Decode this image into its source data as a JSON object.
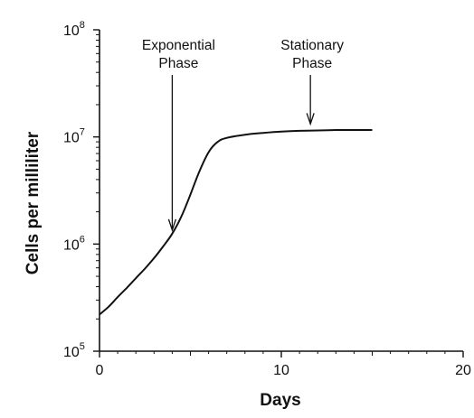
{
  "chart_data": {
    "type": "line",
    "title": "",
    "xlabel": "Days",
    "ylabel": "Cells per milliliter",
    "xlim": [
      0,
      20
    ],
    "ylim": [
      100000,
      100000000
    ],
    "yscale": "log",
    "grid": false,
    "legend": "none",
    "x_ticks": [
      {
        "value": 0,
        "label": "0"
      },
      {
        "value": 10,
        "label": "10"
      },
      {
        "value": 20,
        "label": "20"
      }
    ],
    "y_ticks": [
      {
        "value": 100000,
        "base": "10",
        "exp": "5"
      },
      {
        "value": 1000000,
        "base": "10",
        "exp": "6"
      },
      {
        "value": 10000000,
        "base": "10",
        "exp": "7"
      },
      {
        "value": 100000000,
        "base": "10",
        "exp": "8"
      }
    ],
    "series": [
      {
        "color": "#111111",
        "points": [
          [
            0,
            220000
          ],
          [
            0.5,
            260000
          ],
          [
            1,
            320000
          ],
          [
            1.5,
            390000
          ],
          [
            2,
            480000
          ],
          [
            2.5,
            590000
          ],
          [
            3,
            740000
          ],
          [
            3.5,
            950000
          ],
          [
            4,
            1250000
          ],
          [
            4.5,
            1800000
          ],
          [
            5,
            2900000
          ],
          [
            5.5,
            4800000
          ],
          [
            6,
            7200000
          ],
          [
            6.5,
            9000000
          ],
          [
            7,
            9800000
          ],
          [
            8,
            10500000
          ],
          [
            9,
            10900000
          ],
          [
            10,
            11200000
          ],
          [
            11,
            11400000
          ],
          [
            12,
            11500000
          ],
          [
            13,
            11600000
          ],
          [
            14,
            11600000
          ],
          [
            15,
            11600000
          ]
        ]
      }
    ],
    "annotations": [
      {
        "lines": [
          "Exponential",
          "Phase"
        ],
        "arrow_x": 4,
        "arrow_tip_y": 1350000
      },
      {
        "lines": [
          "Stationary",
          "Phase"
        ],
        "arrow_x": 11.6,
        "arrow_tip_y": 13200000
      }
    ],
    "axis_color": "#111111"
  }
}
